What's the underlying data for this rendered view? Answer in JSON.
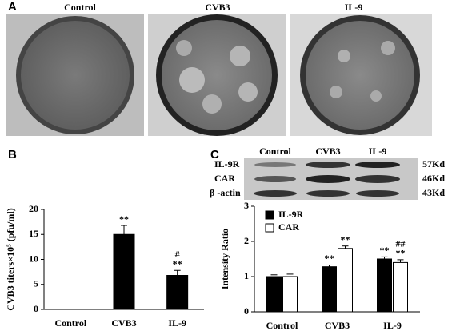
{
  "panel_labels": [
    "A",
    "B",
    "C"
  ],
  "photos": {
    "labels": [
      "Control",
      "CVB3",
      "IL-9"
    ]
  },
  "blot": {
    "columns": [
      "Control",
      "CVB3",
      "IL-9"
    ],
    "rows": [
      {
        "name": "IL-9R",
        "size": "57Kd"
      },
      {
        "name": "CAR",
        "size": "46Kd"
      },
      {
        "name": "β -actin",
        "size": "43Kd"
      }
    ]
  },
  "chart_data": [
    {
      "type": "bar",
      "ylabel": "CVB3 titers×10⁵ (pfu/ml)",
      "categories": [
        "Control",
        "CVB3",
        "IL-9"
      ],
      "values": [
        0,
        15,
        6.8
      ],
      "errors": [
        0,
        1.8,
        1.0
      ],
      "color": "#000000",
      "annotations": [
        [],
        [
          "**"
        ],
        [
          "#",
          "**"
        ]
      ],
      "ylim": [
        0,
        20
      ],
      "yticks": [
        0,
        5,
        10,
        15,
        20
      ]
    },
    {
      "type": "grouped_bar",
      "ylabel": "Intensity Ratio",
      "categories": [
        "Control",
        "CVB3",
        "IL-9"
      ],
      "series": [
        {
          "name": "IL-9R",
          "color": "#000000",
          "values": [
            1.0,
            1.28,
            1.5
          ],
          "errors": [
            0.05,
            0.05,
            0.06
          ],
          "annotations": [
            [],
            [
              "**"
            ],
            [
              "**"
            ]
          ]
        },
        {
          "name": "CAR",
          "color": "#ffffff",
          "values": [
            1.0,
            1.8,
            1.4
          ],
          "errors": [
            0.07,
            0.07,
            0.08
          ],
          "annotations": [
            [],
            [
              "**"
            ],
            [
              "##",
              "**"
            ]
          ]
        }
      ],
      "ylim": [
        0,
        3
      ],
      "yticks": [
        0,
        1,
        2,
        3
      ]
    }
  ]
}
